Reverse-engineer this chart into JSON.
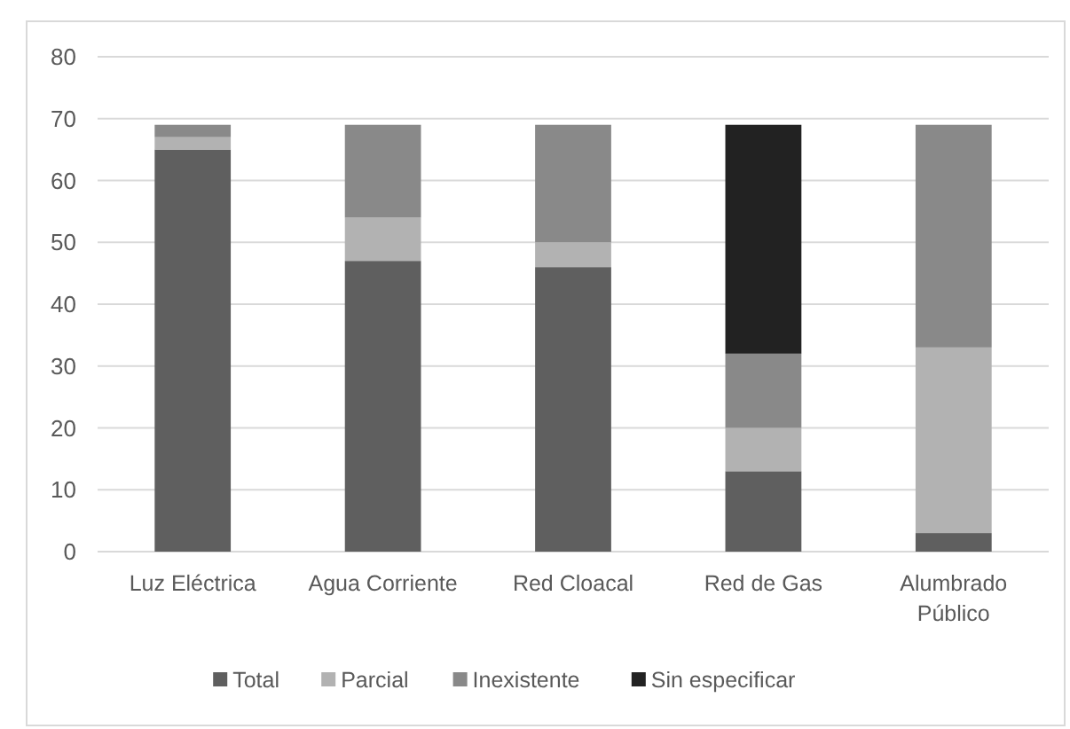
{
  "chart_data": {
    "type": "bar",
    "stacked": true,
    "categories": [
      "Luz Eléctrica",
      "Agua Corriente",
      "Red Cloacal",
      "Red de Gas",
      "Alumbrado Público"
    ],
    "series": [
      {
        "name": "Total",
        "color": "#5f5f5f",
        "values": [
          65,
          47,
          46,
          13,
          3
        ]
      },
      {
        "name": "Parcial",
        "color": "#b2b2b2",
        "values": [
          2,
          7,
          4,
          7,
          30
        ]
      },
      {
        "name": "Inexistente",
        "color": "#898989",
        "values": [
          2,
          15,
          19,
          12,
          36
        ]
      },
      {
        "name": "Sin especificar",
        "color": "#222222",
        "values": [
          0,
          0,
          0,
          37,
          0
        ]
      }
    ],
    "ylim": [
      0,
      80
    ],
    "yticks": [
      0,
      10,
      20,
      30,
      40,
      50,
      60,
      70,
      80
    ],
    "grid": "y",
    "legend": "bottom"
  }
}
